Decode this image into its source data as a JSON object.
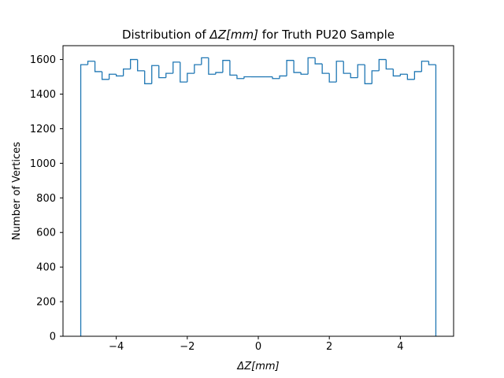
{
  "chart_data": {
    "type": "histogram",
    "title": "Distribution of ΔZ[mm] for Truth PU20 Sample",
    "title_parts": {
      "prefix": "Distribution of ",
      "symbol": "ΔZ[mm]",
      "suffix": " for Truth PU20 Sample"
    },
    "xlabel": "ΔZ[mm]",
    "ylabel": "Number of Vertices",
    "xlim": [
      -5.5,
      5.5
    ],
    "ylim": [
      0,
      1680
    ],
    "xticks": [
      -4,
      -2,
      0,
      2,
      4
    ],
    "xtick_labels": [
      "−4",
      "−2",
      "0",
      "2",
      "4"
    ],
    "yticks": [
      0,
      200,
      400,
      600,
      800,
      1000,
      1200,
      1400,
      1600
    ],
    "ytick_labels": [
      "0",
      "200",
      "400",
      "600",
      "800",
      "1000",
      "1200",
      "1400",
      "1600"
    ],
    "histtype": "step",
    "color": "#1f77b4",
    "grid": false,
    "bin_edges": [
      -5.0,
      -4.8,
      -4.6,
      -4.4,
      -4.2,
      -4.0,
      -3.8,
      -3.6,
      -3.4,
      -3.2,
      -3.0,
      -2.8,
      -2.6,
      -2.4,
      -2.2,
      -2.0,
      -1.8,
      -1.6,
      -1.4,
      -1.2,
      -1.0,
      -0.8,
      -0.6,
      -0.4,
      -0.2,
      0.0,
      0.2,
      0.4,
      0.6,
      0.8,
      1.0,
      1.2,
      1.4,
      1.6,
      1.8,
      2.0,
      2.2,
      2.4,
      2.6,
      2.8,
      3.0,
      3.2,
      3.4,
      3.6,
      3.8,
      4.0,
      4.2,
      4.4,
      4.6,
      4.8,
      5.0
    ],
    "counts": [
      1570,
      1590,
      1530,
      1485,
      1515,
      1505,
      1545,
      1600,
      1535,
      1460,
      1565,
      1495,
      1520,
      1585,
      1470,
      1520,
      1570,
      1610,
      1515,
      1525,
      1595,
      1510,
      1490,
      1500,
      1500,
      1500,
      1500,
      1490,
      1505,
      1595,
      1525,
      1515,
      1610,
      1575,
      1520,
      1470,
      1590,
      1520,
      1495,
      1570,
      1460,
      1535,
      1600,
      1545,
      1505,
      1515,
      1485,
      1530,
      1590,
      1570
    ]
  }
}
